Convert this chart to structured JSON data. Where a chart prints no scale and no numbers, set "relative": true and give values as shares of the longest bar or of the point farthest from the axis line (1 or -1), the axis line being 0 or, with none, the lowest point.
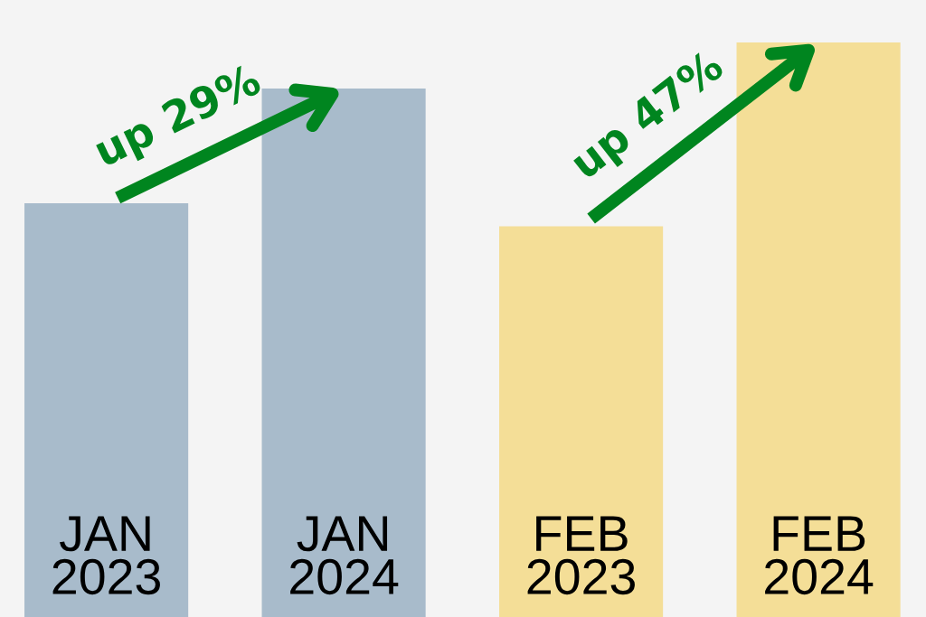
{
  "chart_data": {
    "type": "bar",
    "relative": true,
    "categories": [
      "JAN\n2023",
      "JAN\n2024",
      "FEB\n2023",
      "FEB\n2024"
    ],
    "values": [
      0.72,
      0.92,
      0.68,
      1.0
    ],
    "colors": [
      "#a8bbcb",
      "#a8bbcb",
      "#f4de97",
      "#f4de97"
    ],
    "annotations": [
      "up 29%",
      "up 47%"
    ],
    "grid": false,
    "legend": false
  }
}
